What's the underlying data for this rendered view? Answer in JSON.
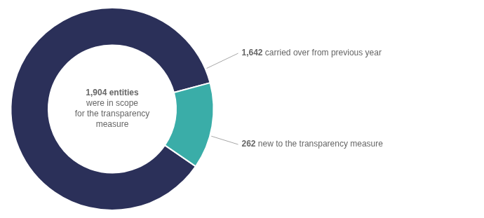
{
  "chart_data": {
    "type": "doughnut",
    "values": [
      1642,
      262
    ],
    "value_labels": [
      "1,642 carried over from previous year",
      "262 new to the transparency measure"
    ],
    "colors": [
      "#2b3059",
      "#3aada8"
    ],
    "annotations": [
      "1,904 entities",
      "were in scope",
      "for the transparency",
      "measure"
    ],
    "data_labels": true,
    "legend": false
  }
}
